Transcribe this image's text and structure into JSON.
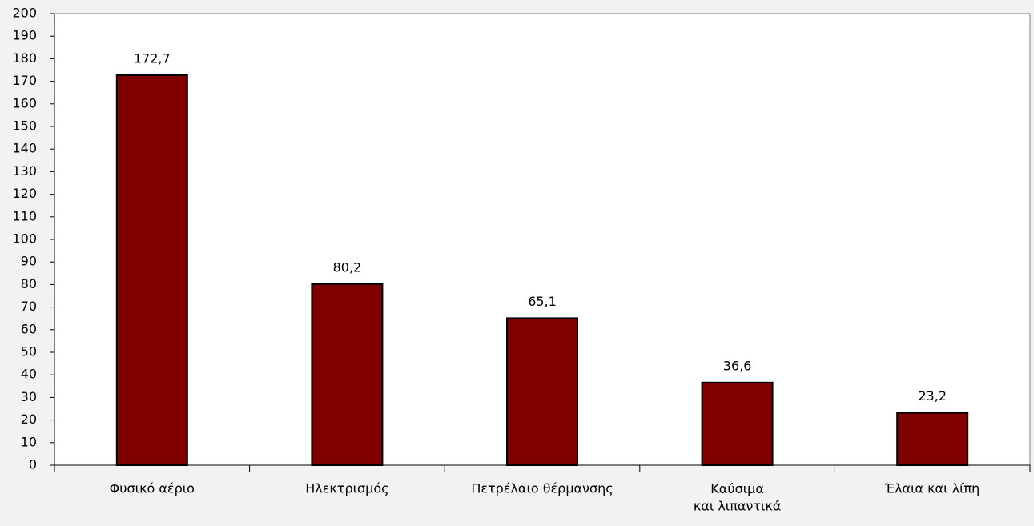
{
  "chart_data": {
    "type": "bar",
    "categories": [
      "Φυσικό αέριο",
      "Ηλεκτρισμός",
      "Πετρέλαιο θέρμανσης",
      "Καύσιμα\nκαι λιπαντικά",
      "Έλαια και λίπη"
    ],
    "values": [
      172.7,
      80.2,
      65.1,
      36.6,
      23.2
    ],
    "value_labels": [
      "172,7",
      "80,2",
      "65,1",
      "36,6",
      "23,2"
    ],
    "color": "#800000",
    "ylim": [
      0,
      200
    ],
    "yticks": [
      0,
      10,
      20,
      30,
      40,
      50,
      60,
      70,
      80,
      90,
      100,
      110,
      120,
      130,
      140,
      150,
      160,
      170,
      180,
      190,
      200
    ],
    "grid": false
  }
}
